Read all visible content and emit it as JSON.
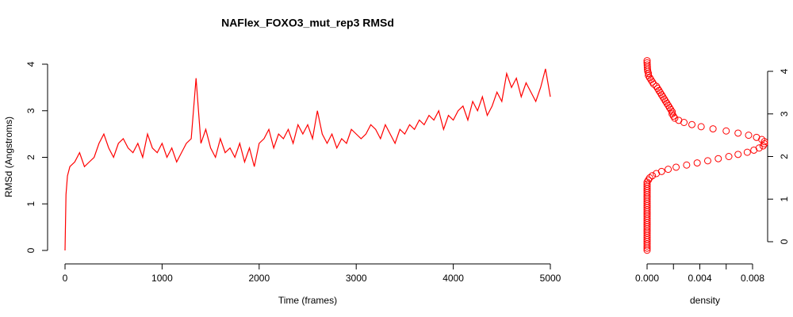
{
  "chart_data": [
    {
      "type": "line",
      "title": "NAFlex_FOXO3_mut_rep3 RMSd",
      "xlabel": "Time (frames)",
      "ylabel": "RMSd (Angstroms)",
      "color": "#ff0000",
      "x": [
        0,
        10,
        25,
        50,
        100,
        150,
        200,
        250,
        300,
        350,
        400,
        450,
        500,
        550,
        600,
        650,
        700,
        750,
        800,
        850,
        900,
        950,
        1000,
        1050,
        1100,
        1150,
        1200,
        1250,
        1300,
        1350,
        1400,
        1450,
        1500,
        1550,
        1600,
        1650,
        1700,
        1750,
        1800,
        1850,
        1900,
        1950,
        2000,
        2050,
        2100,
        2150,
        2200,
        2250,
        2300,
        2350,
        2400,
        2450,
        2500,
        2550,
        2600,
        2650,
        2700,
        2750,
        2800,
        2850,
        2900,
        2950,
        3000,
        3050,
        3100,
        3150,
        3200,
        3250,
        3300,
        3350,
        3400,
        3450,
        3500,
        3550,
        3600,
        3650,
        3700,
        3750,
        3800,
        3850,
        3900,
        3950,
        4000,
        4050,
        4100,
        4150,
        4200,
        4250,
        4300,
        4350,
        4400,
        4450,
        4500,
        4550,
        4600,
        4650,
        4700,
        4750,
        4800,
        4850,
        4900,
        4950,
        5000
      ],
      "values": [
        0,
        1.2,
        1.6,
        1.8,
        1.9,
        2.1,
        1.8,
        1.9,
        2.0,
        2.3,
        2.5,
        2.2,
        2.0,
        2.3,
        2.4,
        2.2,
        2.1,
        2.3,
        2.0,
        2.5,
        2.2,
        2.1,
        2.3,
        2.0,
        2.2,
        1.9,
        2.1,
        2.3,
        2.4,
        3.7,
        2.3,
        2.6,
        2.2,
        2.0,
        2.4,
        2.1,
        2.2,
        2.0,
        2.3,
        1.9,
        2.2,
        1.8,
        2.3,
        2.4,
        2.6,
        2.2,
        2.5,
        2.4,
        2.6,
        2.3,
        2.7,
        2.5,
        2.7,
        2.4,
        3.0,
        2.5,
        2.3,
        2.5,
        2.2,
        2.4,
        2.3,
        2.6,
        2.5,
        2.4,
        2.5,
        2.7,
        2.6,
        2.4,
        2.7,
        2.5,
        2.3,
        2.6,
        2.5,
        2.7,
        2.6,
        2.8,
        2.7,
        2.9,
        2.8,
        3.0,
        2.6,
        2.9,
        2.8,
        3.0,
        3.1,
        2.8,
        3.2,
        3.0,
        3.3,
        2.9,
        3.1,
        3.4,
        3.2,
        3.8,
        3.5,
        3.7,
        3.3,
        3.6,
        3.4,
        3.2,
        3.5,
        3.9,
        3.3
      ],
      "xlim": [
        0,
        5000
      ],
      "xticks": [
        0,
        1000,
        2000,
        3000,
        4000,
        5000
      ],
      "ylim": [
        0,
        4
      ],
      "yticks": [
        0,
        1,
        2,
        3,
        4
      ]
    },
    {
      "type": "scatter",
      "xlabel": "density",
      "color": "#ff0000",
      "x": [
        0,
        0,
        0,
        0,
        0,
        0,
        0,
        0,
        0,
        0,
        0,
        0,
        0,
        0,
        0,
        0,
        0,
        0,
        0,
        0,
        0,
        0,
        0,
        0,
        0,
        0,
        0,
        0,
        0,
        0,
        0,
        0,
        0,
        0.0001,
        0.0002,
        0.0004,
        0.0007,
        0.0011,
        0.0016,
        0.0022,
        0.003,
        0.0038,
        0.0046,
        0.0054,
        0.0062,
        0.0069,
        0.0076,
        0.0081,
        0.0085,
        0.0088,
        0.0089,
        0.0089,
        0.0087,
        0.0083,
        0.0077,
        0.0069,
        0.006,
        0.005,
        0.0041,
        0.0034,
        0.0028,
        0.0024,
        0.0021,
        0.002,
        0.0019,
        0.0019,
        0.0018,
        0.0017,
        0.0016,
        0.0015,
        0.0014,
        0.0013,
        0.0012,
        0.0011,
        0.001,
        0.0009,
        0.0008,
        0.0007,
        0.0005,
        0.0004,
        0.0003,
        0.0002,
        0.0001,
        0.0001,
        5e-05,
        3e-05,
        2e-05,
        1e-05,
        0,
        0
      ],
      "values": [
        -0.2,
        -0.15,
        -0.1,
        -0.05,
        0,
        0.05,
        0.1,
        0.15,
        0.2,
        0.25,
        0.3,
        0.35,
        0.4,
        0.45,
        0.5,
        0.55,
        0.6,
        0.65,
        0.7,
        0.75,
        0.8,
        0.85,
        0.9,
        0.95,
        1,
        1.05,
        1.1,
        1.15,
        1.2,
        1.25,
        1.3,
        1.35,
        1.4,
        1.45,
        1.5,
        1.55,
        1.6,
        1.65,
        1.7,
        1.75,
        1.8,
        1.85,
        1.9,
        1.95,
        2,
        2.05,
        2.1,
        2.15,
        2.2,
        2.25,
        2.3,
        2.35,
        2.4,
        2.45,
        2.5,
        2.55,
        2.6,
        2.65,
        2.7,
        2.75,
        2.8,
        2.85,
        2.9,
        2.95,
        3,
        3.05,
        3.1,
        3.15,
        3.2,
        3.25,
        3.3,
        3.35,
        3.4,
        3.45,
        3.5,
        3.55,
        3.6,
        3.65,
        3.7,
        3.75,
        3.8,
        3.85,
        3.9,
        3.95,
        4,
        4.05,
        4.1,
        4.15,
        4.2,
        4.25
      ],
      "xlim": [
        0,
        0.008
      ],
      "xticks": [
        {
          "value": 0,
          "label": "0.000"
        },
        {
          "value": 0.002,
          "label": null
        },
        {
          "value": 0.004,
          "label": "0.004"
        },
        {
          "value": 0.006,
          "label": null
        },
        {
          "value": 0.008,
          "label": "0.008"
        }
      ],
      "ylim": [
        0,
        4
      ],
      "yticks": [
        0,
        1,
        2,
        3,
        4
      ]
    }
  ]
}
